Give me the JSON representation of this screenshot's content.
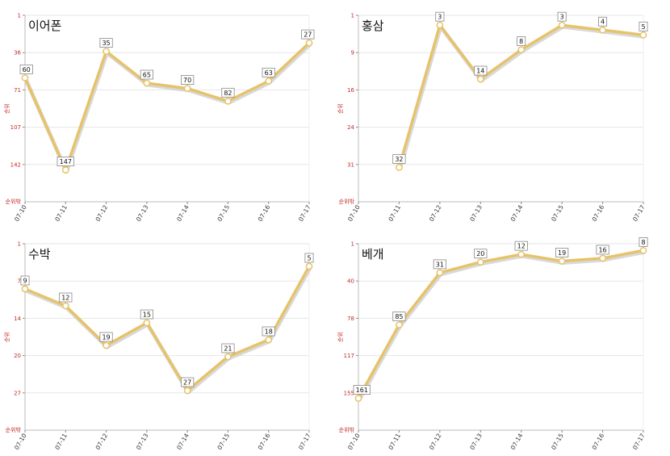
{
  "chart_data": [
    {
      "type": "line",
      "title": "이어폰",
      "categories": [
        "07-10",
        "07-11",
        "07-12",
        "07-13",
        "07-14",
        "07-15",
        "07-16",
        "07-17"
      ],
      "values": [
        60,
        147,
        35,
        65,
        70,
        82,
        63,
        27
      ],
      "data_labels": [
        "60",
        "147",
        "35",
        "65",
        "70",
        "82",
        "63",
        "27"
      ],
      "ylabel": "순위",
      "y_axis_end_label": "순위밖",
      "yticks": [
        "1",
        "36",
        "71",
        "107",
        "142"
      ],
      "ylim": [
        1,
        177
      ],
      "y_inverted": true,
      "grid": true
    },
    {
      "type": "line",
      "title": "홍삼",
      "categories": [
        "07-10",
        "07-11",
        "07-12",
        "07-13",
        "07-14",
        "07-15",
        "07-16",
        "07-17"
      ],
      "values": [
        null,
        32,
        3,
        14,
        8,
        3,
        4,
        5
      ],
      "data_labels": [
        "",
        "32",
        "3",
        "14",
        "8",
        "3",
        "4",
        "5"
      ],
      "ylabel": "순위",
      "y_axis_end_label": "순위밖",
      "yticks": [
        "1",
        "9",
        "16",
        "24",
        "31"
      ],
      "ylim": [
        1,
        39
      ],
      "y_inverted": true,
      "grid": true
    },
    {
      "type": "line",
      "title": "수박",
      "categories": [
        "07-10",
        "07-11",
        "07-12",
        "07-13",
        "07-14",
        "07-15",
        "07-16",
        "07-17"
      ],
      "values": [
        9,
        12,
        19,
        15,
        27,
        21,
        18,
        5
      ],
      "data_labels": [
        "9",
        "12",
        "19",
        "15",
        "27",
        "21",
        "18",
        "5"
      ],
      "ylabel": "순위",
      "y_axis_end_label": "순위밖",
      "yticks": [
        "1",
        "7",
        "14",
        "20",
        "27"
      ],
      "ylim": [
        1,
        34
      ],
      "y_inverted": true,
      "grid": true
    },
    {
      "type": "line",
      "title": "베개",
      "categories": [
        "07-10",
        "07-11",
        "07-12",
        "07-13",
        "07-14",
        "07-15",
        "07-16",
        "07-17"
      ],
      "values": [
        161,
        85,
        31,
        20,
        12,
        19,
        16,
        8
      ],
      "data_labels": [
        "161",
        "85",
        "31",
        "20",
        "12",
        "19",
        "16",
        "8"
      ],
      "ylabel": "순위",
      "y_axis_end_label": "순위밖",
      "yticks": [
        "1",
        "40",
        "78",
        "117",
        "155"
      ],
      "ylim": [
        1,
        194
      ],
      "y_inverted": true,
      "grid": true
    }
  ],
  "colors": {
    "line": "#e6c36a",
    "line_shadow": "#c9c9c9",
    "axis_text": "#c62828",
    "grid": "#e6e6e6",
    "marker_fill": "#ffffff"
  }
}
